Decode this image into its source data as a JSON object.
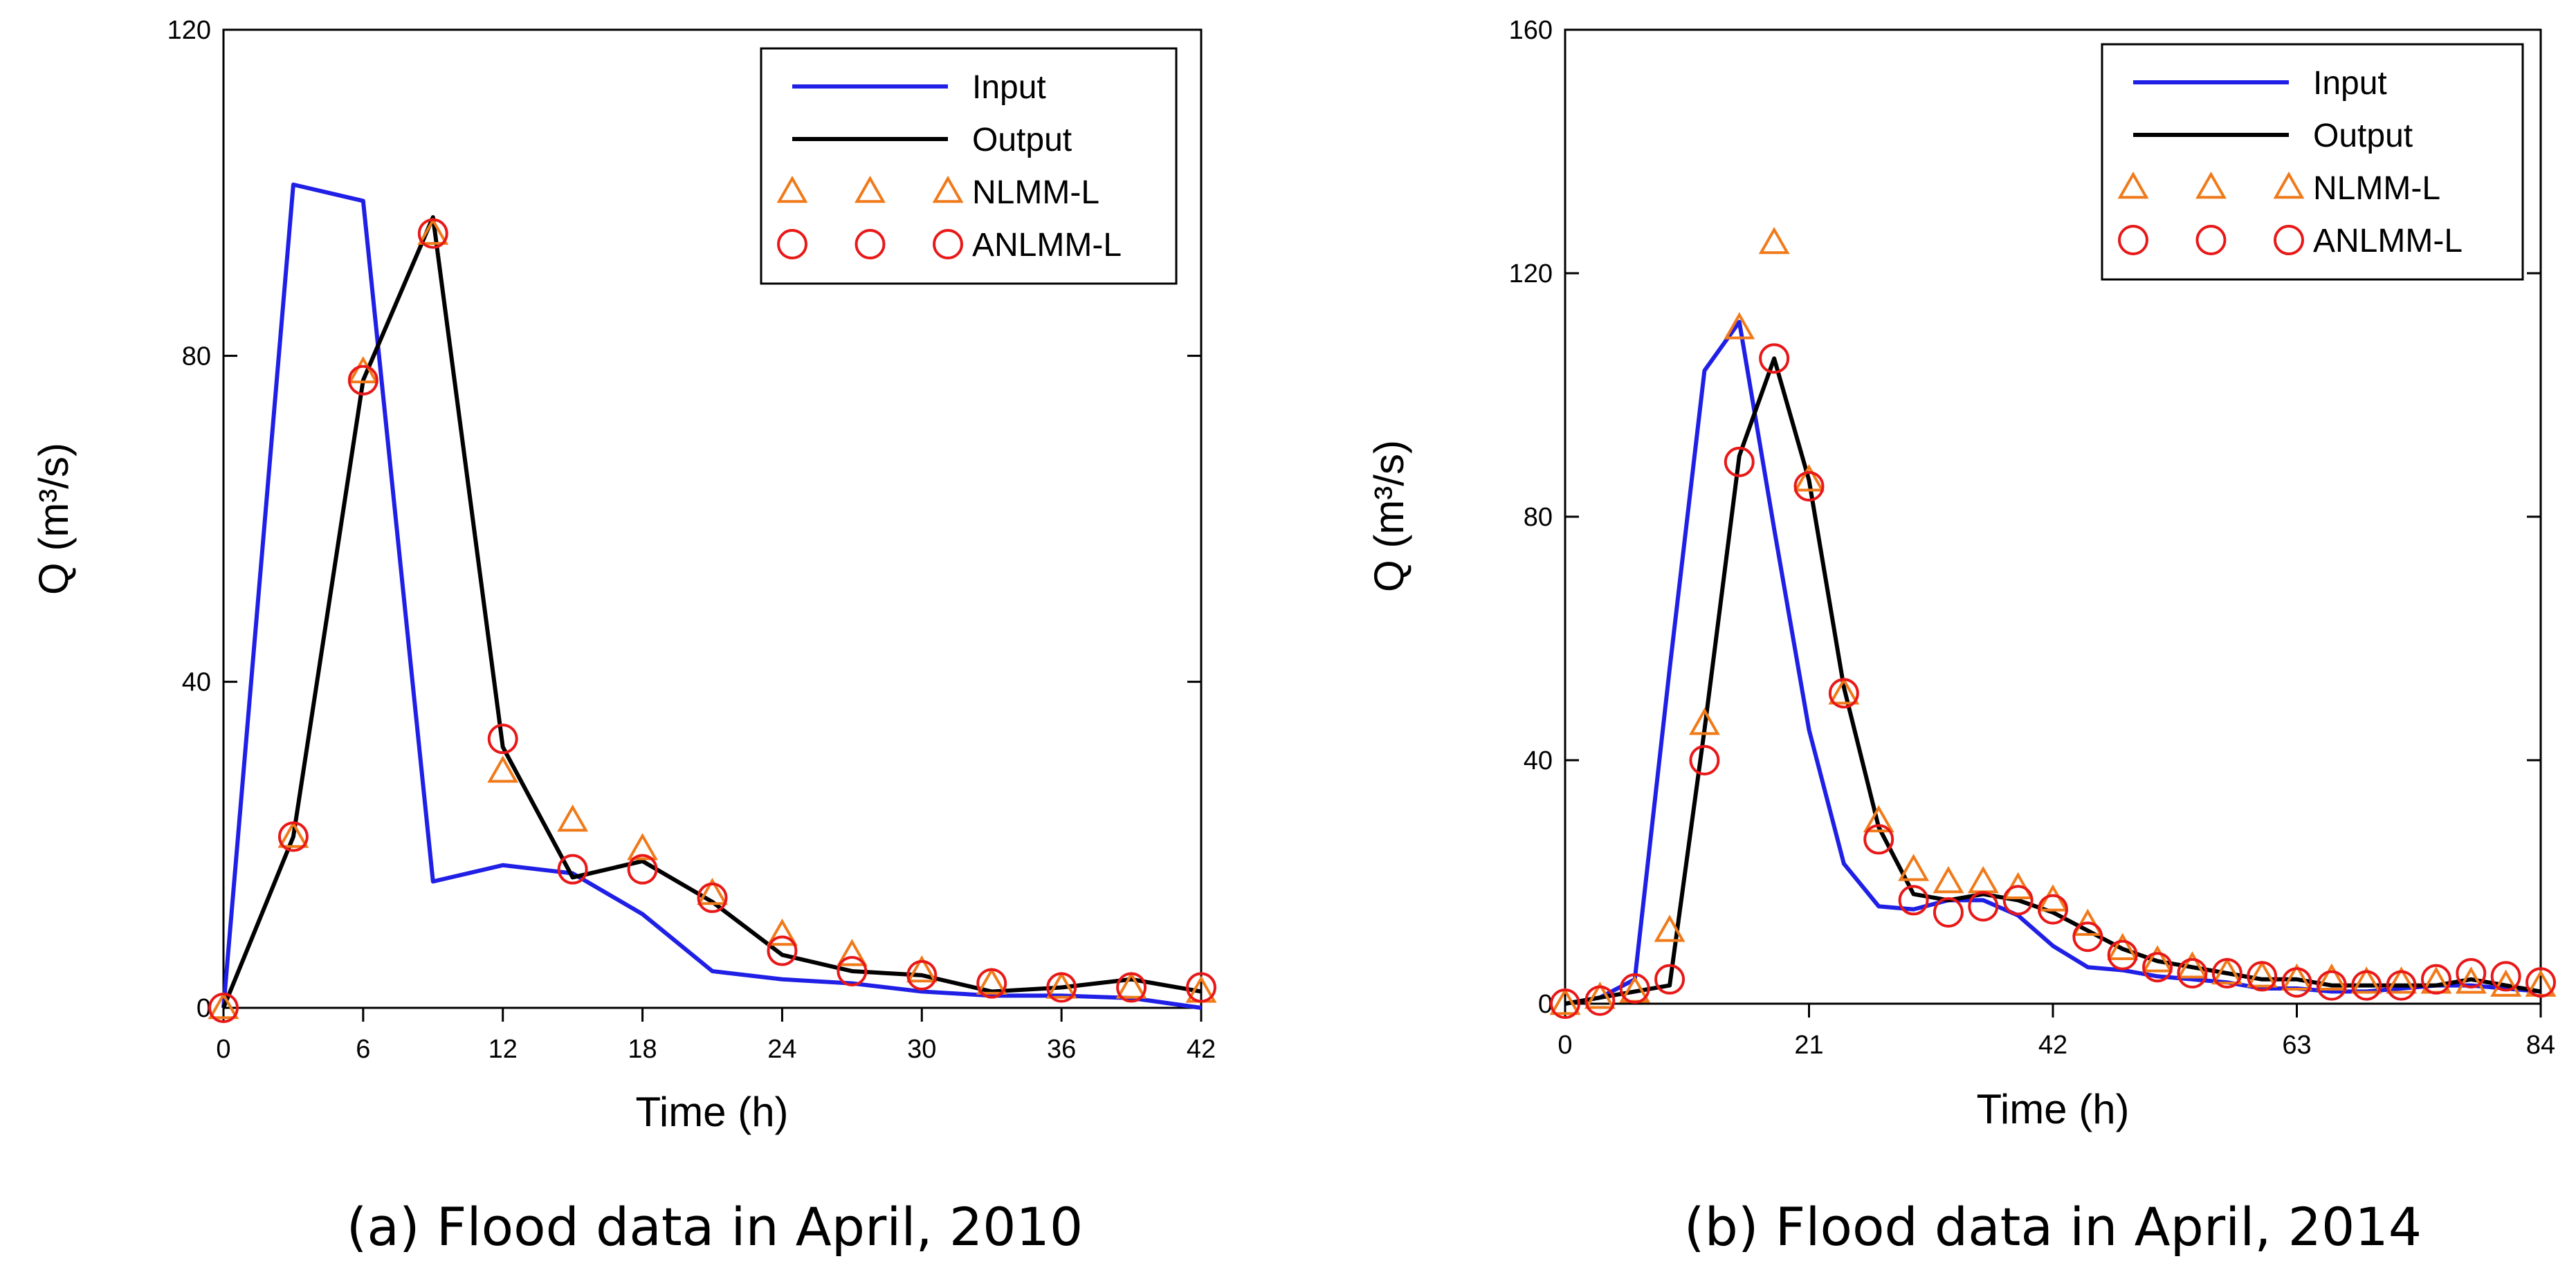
{
  "chart_data": [
    {
      "type": "line",
      "caption": "(a) Flood data in April, 2010",
      "xlabel": "Time (h)",
      "ylabel": "Q (m³/s)",
      "xlim": [
        0,
        42
      ],
      "ylim": [
        0,
        120
      ],
      "xticks": [
        "0",
        "6",
        "12",
        "18",
        "24",
        "30",
        "36",
        "42"
      ],
      "yticks": [
        "0",
        "40",
        "80",
        "120"
      ],
      "legend_position": "top-right",
      "grid": false,
      "series": [
        {
          "name": "Input",
          "kind": "line",
          "color": "#1f1fe6",
          "x": [
            0,
            3,
            6,
            9,
            12,
            15,
            18,
            21,
            24,
            27,
            30,
            33,
            36,
            39,
            42
          ],
          "y": [
            0,
            101,
            99,
            15.5,
            17.5,
            16.5,
            11.5,
            4.5,
            3.5,
            3,
            2,
            1.5,
            1.5,
            1.2,
            0
          ]
        },
        {
          "name": "Output",
          "kind": "line",
          "color": "#000000",
          "x": [
            0,
            3,
            6,
            9,
            12,
            15,
            18,
            21,
            24,
            27,
            30,
            33,
            36,
            39,
            42
          ],
          "y": [
            0,
            21,
            77,
            97,
            32,
            16,
            18,
            13,
            6.5,
            4.5,
            4,
            2,
            2.5,
            3.5,
            2
          ]
        },
        {
          "name": "NLMM-L",
          "kind": "triangle",
          "color": "#f07a1a",
          "x": [
            0,
            3,
            6,
            9,
            12,
            15,
            18,
            21,
            24,
            27,
            30,
            33,
            36,
            39,
            42
          ],
          "y": [
            0,
            21,
            78,
            95,
            29,
            23,
            19.5,
            14,
            9,
            6.5,
            4.5,
            3,
            2.5,
            2.5,
            2
          ]
        },
        {
          "name": "ANLMM-L",
          "kind": "circle",
          "color": "#e81818",
          "x": [
            0,
            3,
            6,
            9,
            12,
            15,
            18,
            21,
            24,
            27,
            30,
            33,
            36,
            39,
            42
          ],
          "y": [
            0,
            21,
            77,
            95,
            33,
            17,
            17,
            13.5,
            7,
            4.5,
            4,
            3,
            2.5,
            2.5,
            2.5
          ]
        }
      ]
    },
    {
      "type": "line",
      "caption": "(b) Flood data in April, 2014",
      "xlabel": "Time (h)",
      "ylabel": "Q (m³/s)",
      "xlim": [
        0,
        84
      ],
      "ylim": [
        0,
        160
      ],
      "xticks": [
        "0",
        "21",
        "42",
        "63",
        "84"
      ],
      "yticks": [
        "0",
        "40",
        "80",
        "120",
        "160"
      ],
      "legend_position": "top-right",
      "grid": false,
      "series": [
        {
          "name": "Input",
          "kind": "line",
          "color": "#1f1fe6",
          "x": [
            0,
            3,
            6,
            9,
            12,
            15,
            18,
            21,
            24,
            27,
            30,
            33,
            36,
            39,
            42,
            45,
            48,
            51,
            54,
            57,
            60,
            63,
            66,
            69,
            72,
            75,
            78,
            81,
            84
          ],
          "y": [
            0,
            1,
            4,
            55,
            104,
            112,
            78,
            45,
            23,
            16,
            15.5,
            17,
            17,
            14.5,
            9.5,
            6,
            5.5,
            4.5,
            4,
            3.5,
            2.5,
            2.5,
            2,
            2,
            2.5,
            3,
            3,
            2.5,
            2
          ]
        },
        {
          "name": "Output",
          "kind": "line",
          "color": "#000000",
          "x": [
            0,
            3,
            6,
            9,
            12,
            15,
            18,
            21,
            24,
            27,
            30,
            33,
            36,
            39,
            42,
            45,
            48,
            51,
            54,
            57,
            60,
            63,
            66,
            69,
            72,
            75,
            78,
            81,
            84
          ],
          "y": [
            0,
            1,
            2,
            3,
            45,
            90,
            106,
            86,
            52,
            29,
            18,
            17,
            18,
            17,
            15,
            12,
            9,
            7,
            6,
            5,
            4,
            4,
            3,
            3,
            3,
            3,
            4,
            3,
            2
          ]
        },
        {
          "name": "NLMM-L",
          "kind": "triangle",
          "color": "#f07a1a",
          "x": [
            0,
            3,
            6,
            9,
            12,
            15,
            18,
            21,
            24,
            27,
            30,
            33,
            36,
            39,
            42,
            45,
            48,
            51,
            54,
            57,
            60,
            63,
            66,
            69,
            72,
            75,
            78,
            81,
            84
          ],
          "y": [
            0,
            1,
            2,
            12,
            46,
            111,
            125,
            86,
            51,
            30,
            22,
            20,
            20,
            19,
            17,
            13,
            9,
            7,
            6,
            5,
            4.5,
            4,
            4,
            3.5,
            3.5,
            3.5,
            3.5,
            3,
            3
          ]
        },
        {
          "name": "ANLMM-L",
          "kind": "circle",
          "color": "#e81818",
          "x": [
            0,
            3,
            6,
            9,
            12,
            15,
            18,
            21,
            24,
            27,
            30,
            33,
            36,
            39,
            42,
            45,
            48,
            51,
            54,
            57,
            60,
            63,
            66,
            69,
            72,
            75,
            78,
            81,
            84
          ],
          "y": [
            0,
            0.5,
            2.5,
            4,
            40,
            89,
            106,
            85,
            51,
            27,
            17,
            15,
            16,
            17,
            15.5,
            11,
            8,
            6,
            5,
            5,
            4.5,
            3.5,
            3,
            3,
            3,
            4,
            5,
            4.5,
            3.5
          ]
        }
      ]
    }
  ]
}
